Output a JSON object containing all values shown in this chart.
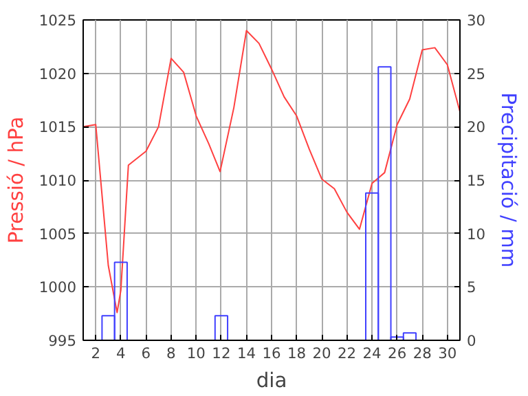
{
  "chart_data": {
    "type": "line",
    "xlabel": "dia",
    "ylabel": "Pressió / hPa",
    "y2label": "Precipitació / mm",
    "xlim": [
      1,
      31
    ],
    "xticks": [
      2,
      4,
      6,
      8,
      10,
      12,
      14,
      16,
      18,
      20,
      22,
      24,
      26,
      28,
      30
    ],
    "ylim": [
      995,
      1025
    ],
    "yticks": [
      995,
      1000,
      1005,
      1010,
      1015,
      1020,
      1025
    ],
    "y2lim": [
      0,
      30
    ],
    "y2ticks": [
      0,
      5,
      10,
      15,
      20,
      25,
      30
    ],
    "grid": true,
    "series": [
      {
        "color": "#ff4040",
        "x": [
          1,
          2,
          3,
          3.7,
          4,
          4.6,
          6,
          7,
          8,
          9,
          10,
          11,
          11.9,
          13,
          14,
          15,
          16,
          17,
          18,
          19,
          20,
          21,
          22,
          23,
          24,
          25,
          26,
          27,
          28,
          29,
          30,
          31
        ],
        "values": [
          1015,
          1015.2,
          1002,
          997.6,
          999.7,
          1011.4,
          1012.7,
          1015,
          1021.4,
          1020.1,
          1016,
          1013.4,
          1010.8,
          1016.8,
          1024,
          1022.8,
          1020.4,
          1017.8,
          1016,
          1012.9,
          1010.1,
          1009.2,
          1007,
          1005.4,
          1009.7,
          1010.7,
          1015.2,
          1017.6,
          1022.2,
          1022.4,
          1020.8,
          1016.4
        ]
      },
      {
        "type": "bar",
        "axis": "y2",
        "color": "#4040ff",
        "x": [
          3,
          4,
          12,
          24,
          25,
          26,
          27
        ],
        "values": [
          2.3,
          7.3,
          2.3,
          13.8,
          25.6,
          0.3,
          0.7
        ]
      }
    ]
  }
}
